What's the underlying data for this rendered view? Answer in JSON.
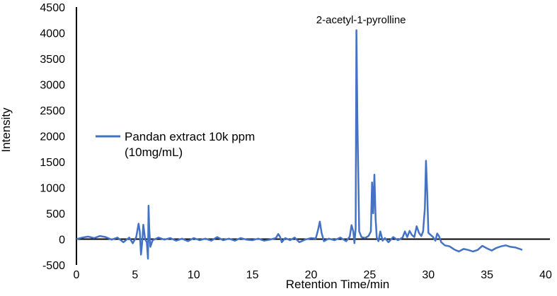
{
  "chart_data": {
    "type": "line",
    "title": "",
    "xlabel": "Retention Time/min",
    "ylabel": "Intensity",
    "xlim": [
      0,
      40
    ],
    "ylim": [
      -500,
      4500
    ],
    "xticks": [
      0,
      5,
      10,
      15,
      20,
      25,
      30,
      35,
      40
    ],
    "yticks": [
      -500,
      0,
      500,
      1000,
      1500,
      2000,
      2500,
      3000,
      3500,
      4000,
      4500
    ],
    "grid": false,
    "legend": {
      "placement": "center-left",
      "entries": [
        "Pandan extract 10k ppm (10mg/mL)"
      ]
    },
    "legend_lines": [
      "Pandan extract 10k ppm",
      "(10mg/mL)"
    ],
    "annotations": [
      {
        "text": "2-acetyl-1-pyrolline",
        "x": 23.9,
        "y": 4100
      }
    ],
    "series": [
      {
        "name": "Pandan extract 10k ppm (10mg/mL)",
        "color": "#4472C4",
        "x": [
          0,
          0.5,
          1,
          1.5,
          2,
          2.5,
          3,
          3.5,
          4,
          4.5,
          4.8,
          5.1,
          5.3,
          5.4,
          5.5,
          5.6,
          5.7,
          5.85,
          6.0,
          6.1,
          6.15,
          6.2,
          6.3,
          6.5,
          7,
          7.5,
          8,
          8.5,
          9,
          9.5,
          10,
          10.5,
          11,
          11.5,
          12,
          12.5,
          13,
          13.5,
          14,
          14.5,
          15,
          15.5,
          16,
          16.5,
          17,
          17.2,
          17.35,
          17.5,
          17.8,
          18.2,
          18.6,
          19,
          19.5,
          20,
          20.4,
          20.6,
          20.75,
          20.9,
          21.1,
          21.5,
          22,
          22.5,
          23,
          23.3,
          23.45,
          23.6,
          23.7,
          23.8,
          23.87,
          23.95,
          24.1,
          24.3,
          24.6,
          24.9,
          25.1,
          25.2,
          25.3,
          25.4,
          25.5,
          25.6,
          25.75,
          25.9,
          26.0,
          26.1,
          26.3,
          26.6,
          27,
          27.4,
          27.8,
          28.0,
          28.2,
          28.4,
          28.6,
          28.8,
          29.0,
          29.2,
          29.4,
          29.55,
          29.7,
          29.8,
          29.9,
          30.0,
          30.2,
          30.4,
          30.6,
          30.75,
          30.9,
          31.1,
          31.4,
          31.8,
          32.2,
          32.6,
          33,
          33.4,
          33.8,
          34.2,
          34.6,
          35,
          35.4,
          35.8,
          36.2,
          36.6,
          37,
          37.4,
          37.8,
          38
        ],
        "y": [
          0,
          30,
          50,
          20,
          60,
          40,
          -10,
          30,
          -60,
          30,
          -80,
          40,
          300,
          150,
          -300,
          -80,
          280,
          0,
          -60,
          -380,
          650,
          220,
          -150,
          -20,
          30,
          -10,
          20,
          -30,
          10,
          -40,
          20,
          -20,
          10,
          -30,
          40,
          -20,
          10,
          -30,
          20,
          -10,
          -20,
          10,
          -30,
          -10,
          20,
          100,
          50,
          -60,
          20,
          -20,
          30,
          -60,
          -10,
          20,
          10,
          180,
          340,
          120,
          -40,
          10,
          -20,
          30,
          -40,
          50,
          270,
          150,
          -80,
          200,
          4050,
          2300,
          150,
          40,
          20,
          60,
          150,
          1100,
          500,
          1250,
          400,
          30,
          -40,
          150,
          60,
          -30,
          20,
          -60,
          40,
          -20,
          30,
          150,
          40,
          160,
          80,
          40,
          250,
          120,
          60,
          150,
          600,
          1520,
          900,
          120,
          80,
          40,
          -30,
          110,
          60,
          -60,
          -120,
          -140,
          -200,
          -240,
          -190,
          -210,
          -240,
          -210,
          -130,
          -180,
          -220,
          -170,
          -140,
          -120,
          -150,
          -160,
          -190,
          -210
        ]
      }
    ]
  }
}
